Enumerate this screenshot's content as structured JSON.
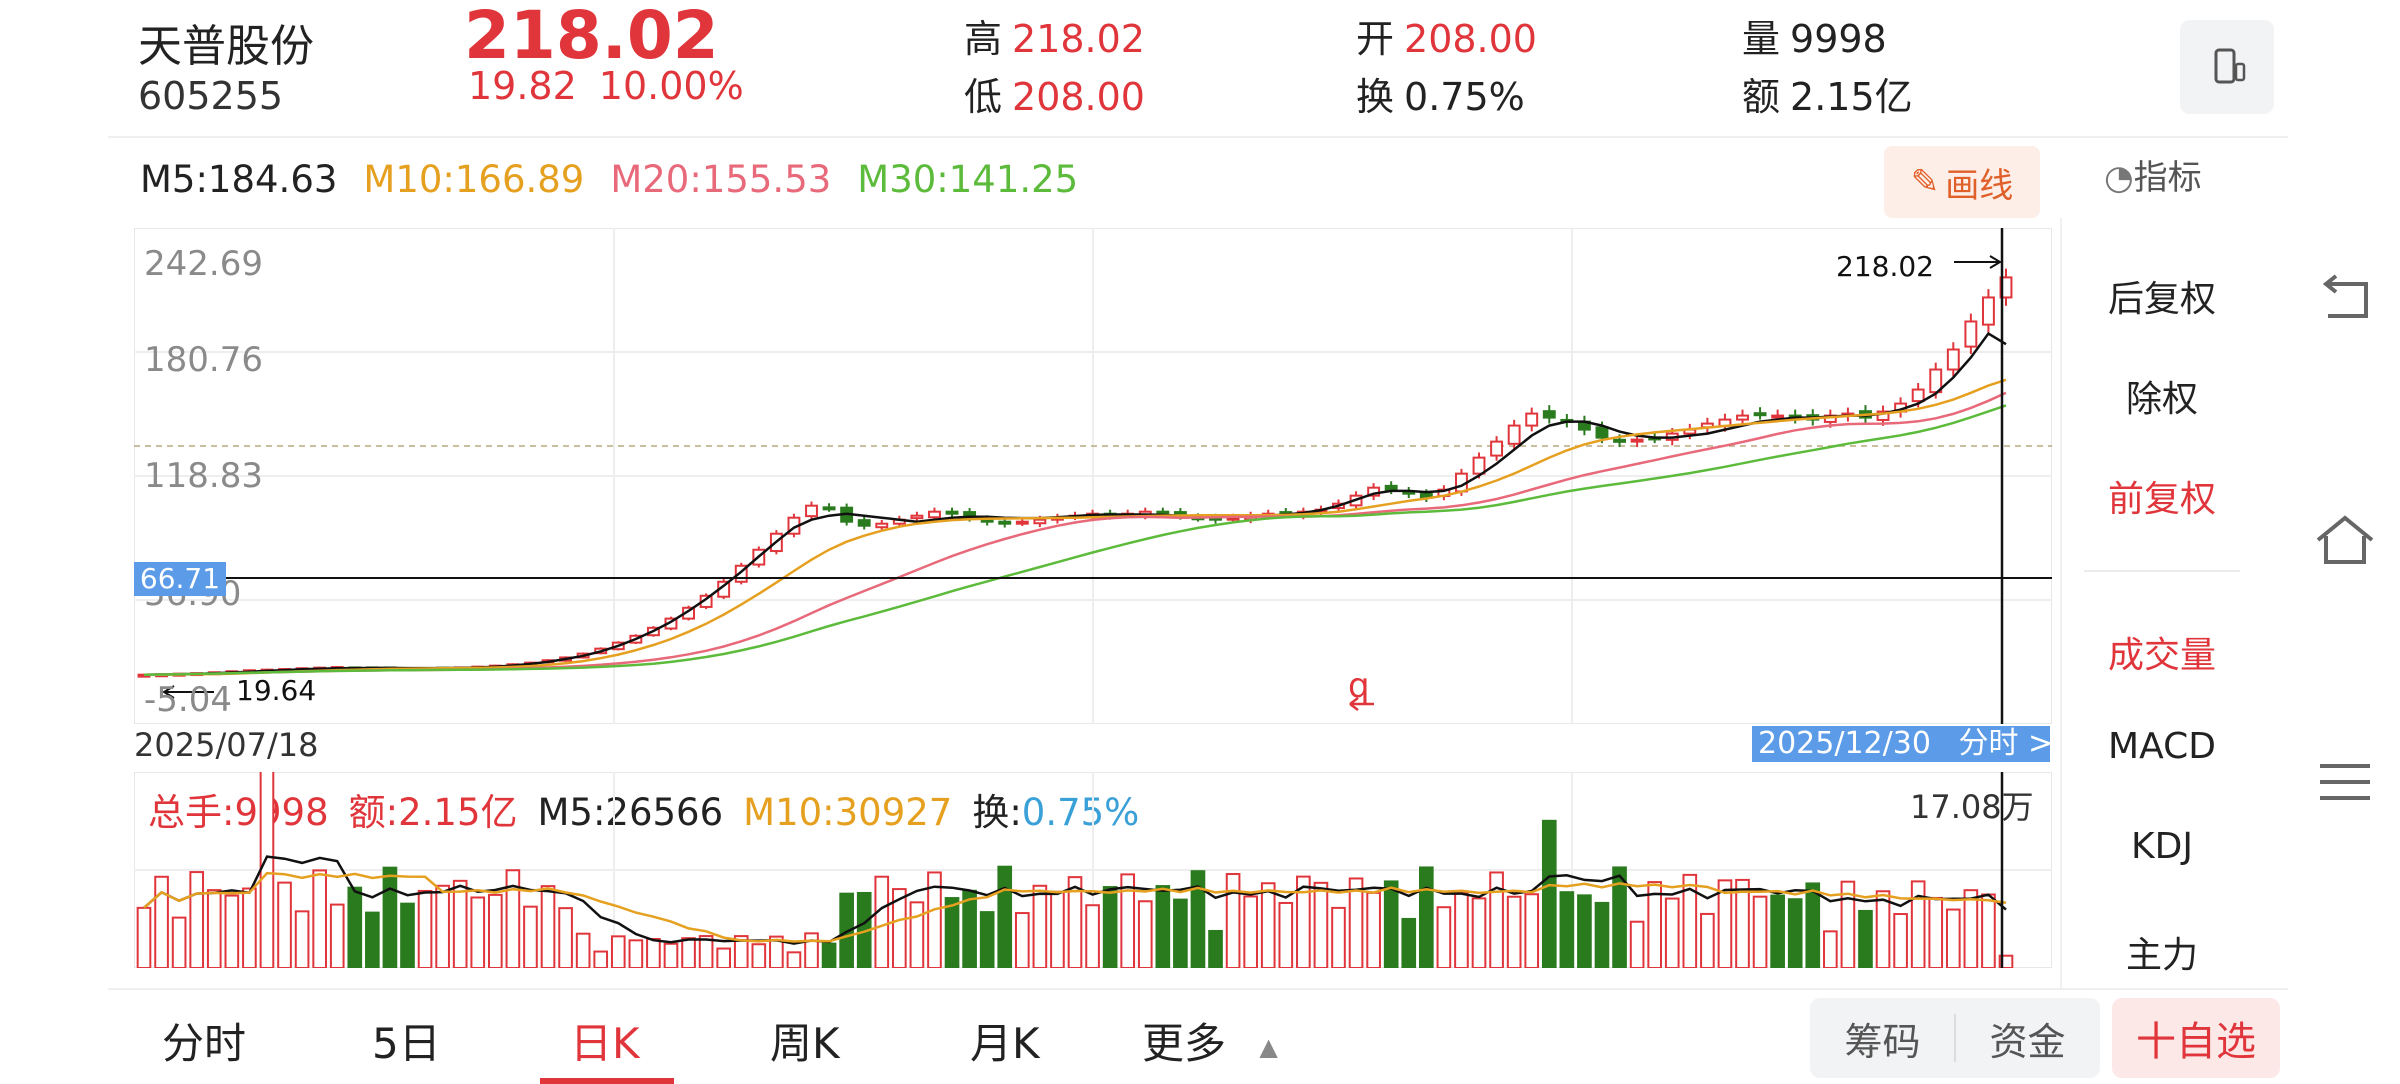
{
  "header": {
    "name": "天普股份",
    "code": "605255",
    "price": "218.02",
    "change": "19.82",
    "change_pct": "10.00%",
    "high_label": "高",
    "high": "218.02",
    "low_label": "低",
    "low": "208.00",
    "open_label": "开",
    "open": "208.00",
    "turnover_label": "换",
    "turnover": "0.75%",
    "volume_label": "量",
    "volume": "9998",
    "amount_label": "额",
    "amount": "2.15亿"
  },
  "ma": {
    "m5": "M5:184.63",
    "m10": "M10:166.89",
    "m20": "M20:155.53",
    "m30": "M30:141.25"
  },
  "toolbar": {
    "draw_label": "画线",
    "indicator_label": "指标"
  },
  "chart_labels": {
    "y_top": "242.69",
    "y_2": "180.76",
    "y_3": "118.83",
    "y_4": "56.90",
    "y_bottom": "-5.04",
    "crosshair_price": "66.71",
    "max_price": "218.02",
    "min_price": "19.64",
    "date_start": "2025/07/18",
    "date_end": "2025/12/30",
    "intraday_link": "分时 >",
    "mid_marker": "q",
    "vol_max": "17.08万"
  },
  "volume_panel": {
    "total": "总手:9998",
    "amount": "额:2.15亿",
    "m5": "M5:26566",
    "m10": "M10:30927",
    "turnover_label": "换:",
    "turnover": "0.75%"
  },
  "side_menu": {
    "items": [
      "后复权",
      "除权",
      "前复权",
      "成交量",
      "MACD",
      "KDJ",
      "主力"
    ]
  },
  "bottom_tabs": [
    "分时",
    "5日",
    "日K",
    "周K",
    "月K",
    "更多"
  ],
  "bottom_right": {
    "chips": "筹码",
    "funds": "资金",
    "add": "十自选"
  },
  "colors": {
    "up": "#e0353b",
    "down": "#2a7a1e",
    "accent": "#5b9be8"
  },
  "chart_data": {
    "type": "candlestick",
    "ylim": [
      -5.04,
      242.69
    ],
    "closes": [
      19.6,
      19.8,
      20.1,
      20.4,
      20.8,
      21.3,
      21.8,
      22.1,
      22.4,
      22.8,
      23.1,
      23.4,
      23.2,
      23.0,
      22.9,
      22.8,
      22.9,
      23.0,
      23.2,
      23.6,
      24.1,
      24.8,
      25.6,
      26.8,
      28.2,
      30.1,
      32.6,
      35.6,
      39.0,
      43.0,
      47.6,
      53.0,
      59.0,
      66.0,
      74.0,
      82.0,
      90.0,
      98.0,
      104.0,
      103.0,
      96.0,
      94.0,
      95.0,
      97.0,
      99.0,
      101.0,
      100.0,
      98.0,
      96.0,
      95.0,
      96.0,
      97.0,
      98.0,
      99.0,
      100.0,
      99.0,
      100.0,
      101.0,
      100.0,
      99.0,
      98.0,
      97.0,
      98.0,
      99.0,
      100.0,
      100.0,
      101.0,
      102.0,
      105.0,
      109.0,
      113.0,
      112.0,
      110.0,
      108.0,
      112.0,
      120.0,
      128.0,
      136.0,
      144.0,
      150.0,
      148.0,
      146.0,
      142.0,
      138.0,
      136.0,
      137.0,
      138.0,
      140.0,
      142.0,
      145.0,
      147.0,
      149.0,
      150.0,
      149.0,
      148.0,
      147.0,
      149.0,
      150.0,
      148.0,
      151.0,
      155.0,
      162.0,
      172.0,
      182.0,
      196.0,
      208.0,
      218.02
    ],
    "ma5": [
      19.6,
      19.7,
      19.8,
      20.0,
      20.3,
      20.7,
      21.1,
      21.5,
      21.9,
      22.3,
      22.6,
      22.8,
      22.9,
      23.0,
      23.0,
      22.9,
      22.9,
      22.9,
      23.0,
      23.2,
      23.6,
      24.2,
      25.0,
      26.0,
      27.4,
      29.0,
      31.2,
      34.0,
      37.4,
      41.4,
      46.0,
      51.4,
      57.4,
      64.0,
      71.0,
      78.6,
      86.0,
      93.0,
      97.0,
      99.0,
      100.0,
      99.0,
      98.0,
      97.0,
      96.0,
      97.0,
      98.0,
      98.5,
      98.5,
      98.0,
      97.8,
      97.8,
      98.2,
      98.8,
      99.4,
      99.6,
      99.6,
      99.6,
      99.4,
      99.0,
      98.6,
      98.4,
      98.4,
      98.6,
      99.0,
      99.6,
      100.4,
      101.8,
      104.0,
      107.0,
      110.0,
      111.4,
      111.4,
      110.8,
      111.4,
      114.0,
      119.0,
      125.0,
      132.0,
      139.0,
      144.0,
      146.0,
      146.0,
      144.0,
      141.0,
      139.0,
      138.0,
      138.0,
      139.0,
      140.0,
      142.0,
      144.0,
      146.0,
      147.0,
      148.0,
      148.0,
      148.5,
      149.0,
      149.0,
      150.0,
      152.0,
      155.0,
      160.0,
      168.0,
      178.0,
      190.0,
      184.63
    ],
    "ma10": [
      19.6,
      19.6,
      19.7,
      19.8,
      19.9,
      20.1,
      20.4,
      20.7,
      21.0,
      21.3,
      21.6,
      21.9,
      22.1,
      22.3,
      22.5,
      22.6,
      22.7,
      22.8,
      22.9,
      23.0,
      23.2,
      23.5,
      23.9,
      24.5,
      25.3,
      26.4,
      27.8,
      29.6,
      31.8,
      34.4,
      37.4,
      41.0,
      45.0,
      49.6,
      54.6,
      60.0,
      65.6,
      71.4,
      77.0,
      82.0,
      86.0,
      89.0,
      91.5,
      93.5,
      95.0,
      96.0,
      96.8,
      97.2,
      97.5,
      97.6,
      97.7,
      97.8,
      97.9,
      98.0,
      98.2,
      98.4,
      98.6,
      98.8,
      99.0,
      99.1,
      99.2,
      99.2,
      99.2,
      99.2,
      99.3,
      99.4,
      99.7,
      100.2,
      101.0,
      102.2,
      103.6,
      105.0,
      106.4,
      107.6,
      109.0,
      111.0,
      113.6,
      116.6,
      120.0,
      124.0,
      128.0,
      131.6,
      134.6,
      136.8,
      138.4,
      139.6,
      140.6,
      141.4,
      142.2,
      143.0,
      143.8,
      144.6,
      145.4,
      146.2,
      147.0,
      147.6,
      148.2,
      148.8,
      149.4,
      150.0,
      151.0,
      152.4,
      154.4,
      157.0,
      160.4,
      164.0,
      166.89
    ]
  }
}
